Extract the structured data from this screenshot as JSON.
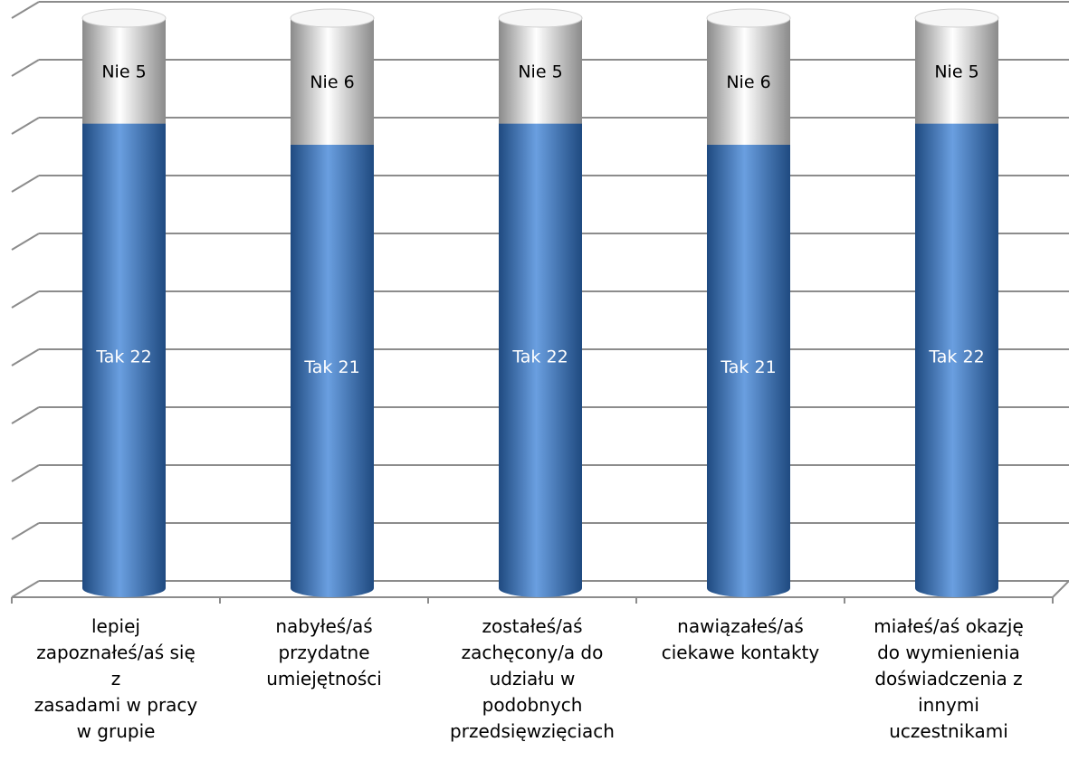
{
  "chart_data": {
    "type": "bar",
    "stacked": true,
    "style": "3d-cylinder",
    "categories": [
      "lepiej zapoznałeś/aś się z zasadami w pracy w grupie",
      "nabyłeś/aś przydatne umiejętności",
      "zostałeś/aś zachęcony/a do udziału w podobnych przedsięwzięciach",
      "nawiązałeś/aś ciekawe kontakty",
      "miałeś/aś okazję do wymienienia doświadczenia z innymi uczestnikami"
    ],
    "category_lines": [
      [
        "lepiej",
        "zapoznałeś/aś się z",
        "zasadami w pracy",
        "w grupie"
      ],
      [
        "nabyłeś/aś",
        "przydatne",
        "umiejętności"
      ],
      [
        "zostałeś/aś",
        "zachęcony/a do",
        "udziału w",
        "podobnych",
        "przedsięwzięciach"
      ],
      [
        "nawiązałeś/aś",
        "ciekawe kontakty"
      ],
      [
        "miałeś/aś okazję",
        "do wymienienia",
        "doświadczenia z",
        "innymi",
        "uczestnikami"
      ]
    ],
    "series": [
      {
        "name": "Tak",
        "values": [
          22,
          21,
          22,
          21,
          22
        ],
        "labels": [
          "Tak 22",
          "Tak 21",
          "Tak 22",
          "Tak 21",
          "Tak 22"
        ],
        "color": "#4a7fc1"
      },
      {
        "name": "Nie",
        "values": [
          5,
          6,
          5,
          6,
          5
        ],
        "labels": [
          "Nie 5",
          "Nie 6",
          "Nie 5",
          "Nie 6",
          "Nie 5"
        ],
        "color": "#e8e8e8"
      }
    ],
    "ylim": [
      0,
      27
    ],
    "gridlines": 11,
    "grid": true,
    "legend": "none",
    "title": "",
    "xlabel": "",
    "ylabel": ""
  }
}
